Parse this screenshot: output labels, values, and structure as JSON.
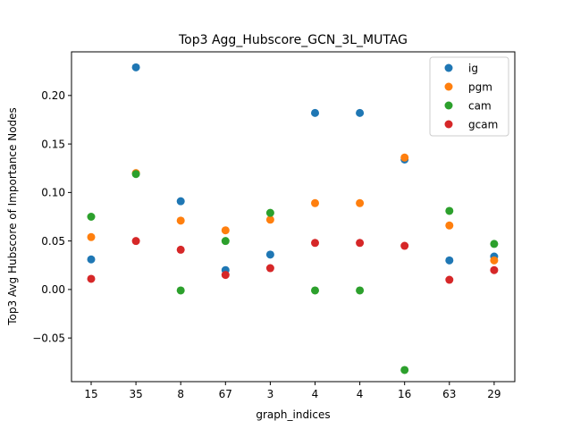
{
  "chart_data": {
    "type": "scatter",
    "title": "Top3 Agg_Hubscore_GCN_3L_MUTAG",
    "xlabel": "graph_indices",
    "ylabel": "Top3 Avg Hubscore of Importance Nodes",
    "categories": [
      "15",
      "35",
      "8",
      "67",
      "3",
      "4",
      "4",
      "16",
      "63",
      "29"
    ],
    "ylim": [
      -0.095,
      0.245
    ],
    "yticks": [
      -0.05,
      0.0,
      0.05,
      0.1,
      0.15,
      0.2
    ],
    "ytick_labels": [
      "−0.05",
      "0.00",
      "0.05",
      "0.10",
      "0.15",
      "0.20"
    ],
    "grid": false,
    "legend_position": "top-right",
    "series": [
      {
        "name": "ig",
        "color": "#1f77b4",
        "values": [
          0.031,
          0.229,
          0.091,
          0.02,
          0.036,
          0.182,
          0.182,
          0.134,
          0.03,
          0.034
        ]
      },
      {
        "name": "pgm",
        "color": "#ff7f0e",
        "values": [
          0.054,
          0.12,
          0.071,
          0.061,
          0.072,
          0.089,
          0.089,
          0.136,
          0.066,
          0.03
        ]
      },
      {
        "name": "cam",
        "color": "#2ca02c",
        "values": [
          0.075,
          0.119,
          -0.001,
          0.05,
          0.079,
          -0.001,
          -0.001,
          -0.083,
          0.081,
          0.047
        ]
      },
      {
        "name": "gcam",
        "color": "#d62728",
        "values": [
          0.011,
          0.05,
          0.041,
          0.015,
          0.022,
          0.048,
          0.048,
          0.045,
          0.01,
          0.02
        ]
      }
    ]
  }
}
